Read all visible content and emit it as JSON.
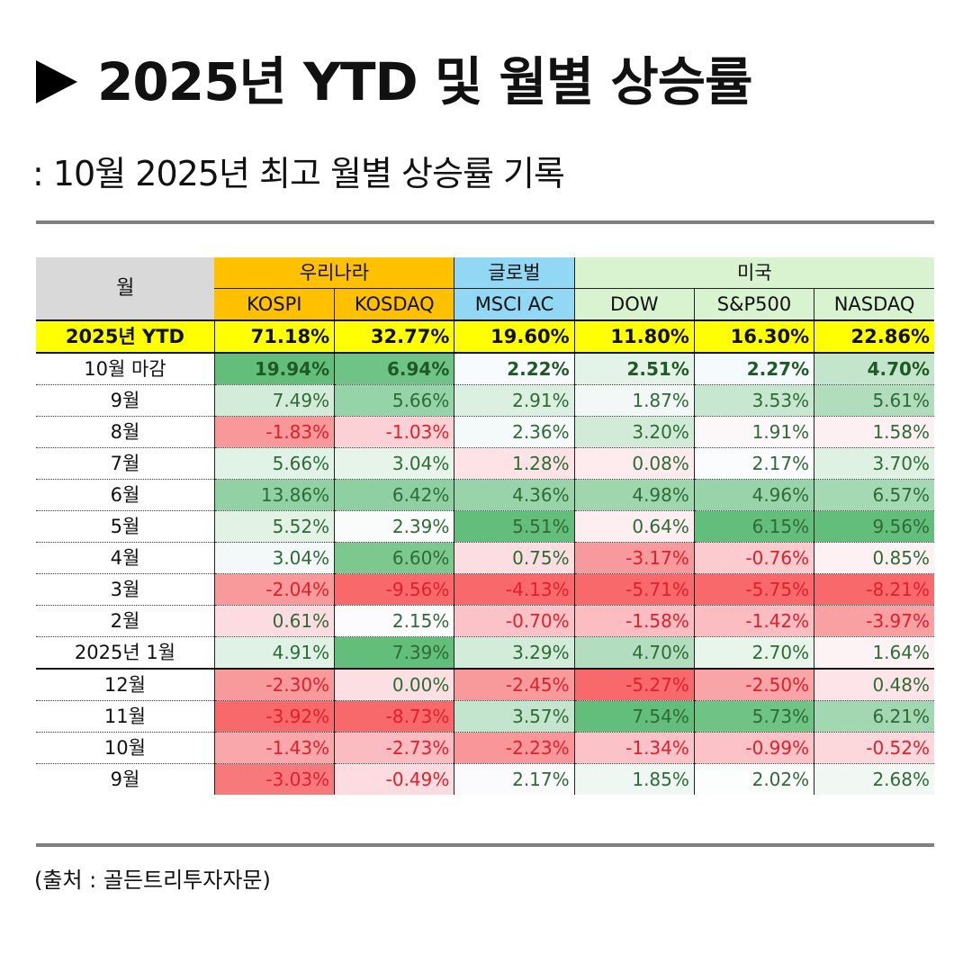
{
  "header": {
    "title": "2025년 YTD 및 월별 상승률",
    "subtitle": ": 10월 2025년 최고 월별 상승률 기록"
  },
  "footer": {
    "source": "(출처 : 골든트리투자자문)"
  },
  "colors": {
    "korea_group": "#ffc000",
    "global_group": "#92d8f5",
    "us_group": "#d9f2d0",
    "ytd_row": "#ffff00",
    "month_header": "#d9d9d9",
    "positive_text": "#2f6b36",
    "negative_text": "#e0202a"
  },
  "chart_data": {
    "type": "heatmap",
    "title": "2025년 YTD 및 월별 상승률",
    "row_header_label": "월",
    "groups": [
      {
        "name": "우리나라",
        "columns": [
          "KOSPI",
          "KOSDAQ"
        ]
      },
      {
        "name": "글로벌",
        "columns": [
          "MSCI AC"
        ]
      },
      {
        "name": "미국",
        "columns": [
          "DOW",
          "S&P500",
          "NASDAQ"
        ]
      }
    ],
    "columns": [
      "KOSPI",
      "KOSDAQ",
      "MSCI AC",
      "DOW",
      "S&P500",
      "NASDAQ"
    ],
    "ytd": {
      "label": "2025년 YTD",
      "values": [
        "71.18%",
        "32.77%",
        "19.60%",
        "11.80%",
        "16.30%",
        "22.86%"
      ]
    },
    "rows": [
      {
        "label": "10월 마감",
        "values": [
          "19.94%",
          "6.94%",
          "2.22%",
          "2.51%",
          "2.27%",
          "4.70%"
        ],
        "colors": [
          "#63be7b",
          "#70c386",
          "#f8fbfd",
          "#e4f3e8",
          "#f5fafc",
          "#c3e5cc"
        ]
      },
      {
        "label": "9월",
        "values": [
          "7.49%",
          "5.66%",
          "2.91%",
          "1.87%",
          "3.53%",
          "5.61%"
        ],
        "colors": [
          "#d3ecd9",
          "#97d3a8",
          "#dcf0e1",
          "#f1f8f5",
          "#c8e7d0",
          "#b1ddbd"
        ]
      },
      {
        "label": "8월",
        "values": [
          "-1.83%",
          "-1.03%",
          "2.36%",
          "3.20%",
          "1.91%",
          "1.58%"
        ],
        "colors": [
          "#f8989b",
          "#fbd1d6",
          "#f4f9fa",
          "#d2ebd8",
          "#fcf8fa",
          "#fdf0f3"
        ]
      },
      {
        "label": "7월",
        "values": [
          "5.66%",
          "3.04%",
          "1.28%",
          "0.08%",
          "2.17%",
          "3.70%"
        ],
        "colors": [
          "#e1f2e6",
          "#e6f4ea",
          "#fde2e6",
          "#fdebee",
          "#fbfcfd",
          "#def1e3"
        ]
      },
      {
        "label": "6월",
        "values": [
          "13.86%",
          "6.42%",
          "4.36%",
          "4.98%",
          "4.96%",
          "6.57%"
        ],
        "colors": [
          "#92d1a4",
          "#8fd0a2",
          "#98d3a9",
          "#9fd6ae",
          "#98d3a9",
          "#a5d9b3"
        ]
      },
      {
        "label": "5월",
        "values": [
          "5.52%",
          "2.39%",
          "5.51%",
          "0.64%",
          "6.15%",
          "9.56%"
        ],
        "colors": [
          "#e2f3e6",
          "#fafcfc",
          "#63be7b",
          "#fdeef1",
          "#63be7b",
          "#63be7b"
        ]
      },
      {
        "label": "4월",
        "values": [
          "3.04%",
          "6.60%",
          "0.75%",
          "-3.17%",
          "-0.76%",
          "0.85%"
        ],
        "colors": [
          "#f3f9f8",
          "#7cc88f",
          "#fcdde1",
          "#f89a9d",
          "#fbcbd0",
          "#fdf1f3"
        ]
      },
      {
        "label": "3월",
        "values": [
          "-2.04%",
          "-9.56%",
          "-4.13%",
          "-5.71%",
          "-5.75%",
          "-8.21%"
        ],
        "colors": [
          "#f8999c",
          "#f8696b",
          "#f8696b",
          "#f8696b",
          "#f8696b",
          "#f8696b"
        ]
      },
      {
        "label": "2월",
        "values": [
          "0.61%",
          "2.15%",
          "-0.70%",
          "-1.58%",
          "-1.42%",
          "-3.97%"
        ],
        "colors": [
          "#fcdce0",
          "#fcfcff",
          "#fbc3c8",
          "#fbbdc2",
          "#fbbdc2",
          "#f9a0a3"
        ]
      },
      {
        "label": "2025년 1월",
        "values": [
          "4.91%",
          "7.39%",
          "3.29%",
          "4.70%",
          "2.70%",
          "1.64%"
        ],
        "colors": [
          "#e0f2e5",
          "#63be7b",
          "#d3ecd9",
          "#b2ddbe",
          "#e7f5eb",
          "#fdf2f4"
        ]
      },
      {
        "label": "12월",
        "values": [
          "-2.30%",
          "0.00%",
          "-2.45%",
          "-5.27%",
          "-2.50%",
          "0.48%"
        ],
        "colors": [
          "#f8999c",
          "#fcdfe3",
          "#f8999c",
          "#f8696b",
          "#f9a4a7",
          "#fde4e8"
        ]
      },
      {
        "label": "11월",
        "values": [
          "-3.92%",
          "-8.73%",
          "3.57%",
          "7.54%",
          "5.73%",
          "6.21%"
        ],
        "colors": [
          "#f8696b",
          "#f8696b",
          "#c4e5cd",
          "#63be7b",
          "#6ec385",
          "#a2d7b1"
        ]
      },
      {
        "label": "10월",
        "values": [
          "-1.43%",
          "-2.73%",
          "-2.23%",
          "-1.34%",
          "-0.99%",
          "-0.52%"
        ],
        "colors": [
          "#f9a7aa",
          "#fabcc0",
          "#f89699",
          "#fbc3c8",
          "#fbc3c8",
          "#fcd8dc"
        ]
      },
      {
        "label": "9월",
        "values": [
          "-3.03%",
          "-0.49%",
          "2.17%",
          "1.85%",
          "2.02%",
          "2.68%"
        ],
        "colors": [
          "#f8797b",
          "#fcdce0",
          "#fbfbfe",
          "#eef7f2",
          "#fcfdfd",
          "#f1f8f4"
        ]
      }
    ]
  }
}
